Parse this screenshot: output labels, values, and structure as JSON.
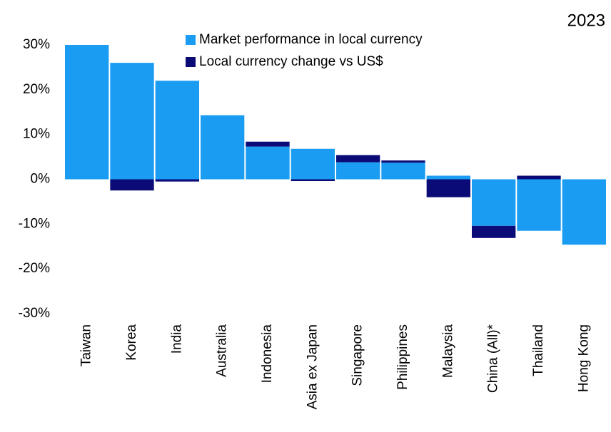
{
  "chart_data": {
    "type": "bar",
    "stacked": true,
    "subtitle": "2023",
    "categories": [
      "Taiwan",
      "Korea",
      "India",
      "Australia",
      "Indonesia",
      "Asia ex Japan",
      "Singapore",
      "Philippines",
      "Malaysia",
      "China (All)*",
      "Thailand",
      "Hong Kong"
    ],
    "series": [
      {
        "name": "Market performance in local currency",
        "color": "#1a9cf2",
        "values": [
          30.0,
          26.0,
          22.0,
          14.3,
          7.3,
          6.8,
          3.8,
          3.7,
          0.8,
          -10.4,
          -11.5,
          -14.6
        ]
      },
      {
        "name": "Local currency change vs US$",
        "color": "#0b0b78",
        "values": [
          0,
          -2.5,
          -0.5,
          0,
          1.1,
          -0.4,
          1.6,
          0.5,
          -4.0,
          -2.7,
          0.8,
          0
        ]
      }
    ],
    "ylim": [
      -30,
      30
    ],
    "yticks": [
      {
        "value": -30,
        "label": "-30%"
      },
      {
        "value": -20,
        "label": "-20%"
      },
      {
        "value": -10,
        "label": "-10%"
      },
      {
        "value": 0,
        "label": "0%"
      },
      {
        "value": 10,
        "label": "10%"
      },
      {
        "value": 20,
        "label": "20%"
      },
      {
        "value": 30,
        "label": "30%"
      }
    ]
  }
}
